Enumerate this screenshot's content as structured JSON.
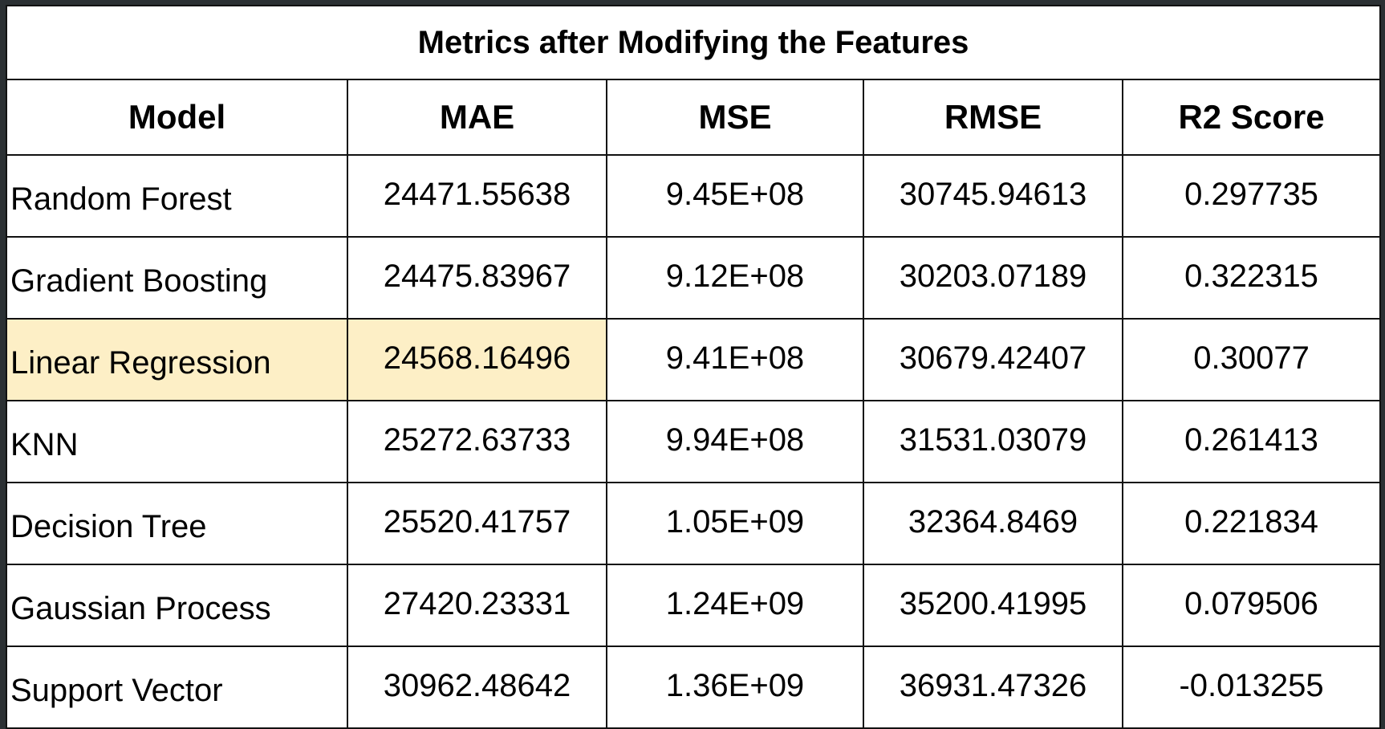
{
  "chart_data": {
    "type": "table",
    "title": "Metrics after Modifying the Features",
    "columns": [
      "Model",
      "MAE",
      "MSE",
      "RMSE",
      "R2 Score"
    ],
    "rows": [
      {
        "model": "Random Forest",
        "mae": "24471.55638",
        "mse": "9.45E+08",
        "rmse": "30745.94613",
        "r2": "0.297735",
        "highlight": false
      },
      {
        "model": "Gradient Boosting",
        "mae": "24475.83967",
        "mse": "9.12E+08",
        "rmse": "30203.07189",
        "r2": "0.322315",
        "highlight": false
      },
      {
        "model": "Linear Regression",
        "mae": "24568.16496",
        "mse": "9.41E+08",
        "rmse": "30679.42407",
        "r2": "0.30077",
        "highlight": true
      },
      {
        "model": "KNN",
        "mae": "25272.63733",
        "mse": "9.94E+08",
        "rmse": "31531.03079",
        "r2": "0.261413",
        "highlight": false
      },
      {
        "model": "Decision Tree",
        "mae": "25520.41757",
        "mse": "1.05E+09",
        "rmse": "32364.8469",
        "r2": "0.221834",
        "highlight": false
      },
      {
        "model": "Gaussian Process",
        "mae": "27420.23331",
        "mse": "1.24E+09",
        "rmse": "35200.41995",
        "r2": "0.079506",
        "highlight": false
      },
      {
        "model": "Support Vector",
        "mae": "30962.48642",
        "mse": "1.36E+09",
        "rmse": "36931.47326",
        "r2": "-0.013255",
        "highlight": false
      }
    ]
  },
  "colors": {
    "highlight": "#fdefc6",
    "background": "#2b3033",
    "border": "#111111"
  }
}
